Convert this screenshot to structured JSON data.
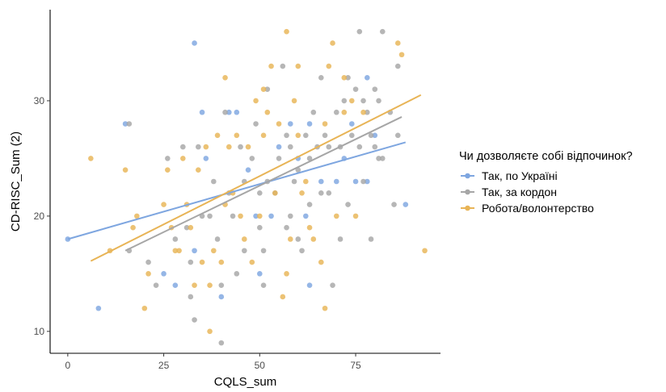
{
  "chart_data": {
    "type": "scatter",
    "xlabel": "CQLS_sum",
    "ylabel": "CD-RISC_Sum (2)",
    "xlim": [
      -4.6,
      97.1
    ],
    "ylim": [
      8.1,
      37.9
    ],
    "x_ticks": [
      0,
      25,
      50,
      75
    ],
    "y_ticks": [
      10,
      20,
      30
    ],
    "x_tick_labels": [
      "0",
      "25",
      "50",
      "75"
    ],
    "y_tick_labels": [
      "10",
      "20",
      "30"
    ],
    "grid": false,
    "legend": {
      "title": "Чи дозволяєте собі відпочинок?",
      "placement": "right"
    },
    "series": [
      {
        "name": "Так, по Україні",
        "color": "#7EA6E0",
        "fit": {
          "x": [
            0,
            88
          ],
          "y": [
            18,
            26.4
          ]
        },
        "points": [
          [
            0,
            18
          ],
          [
            8,
            12
          ],
          [
            15,
            28
          ],
          [
            25,
            15
          ],
          [
            28,
            14
          ],
          [
            33,
            35
          ],
          [
            33,
            17
          ],
          [
            35,
            29
          ],
          [
            36,
            25
          ],
          [
            40,
            13
          ],
          [
            42,
            29
          ],
          [
            44,
            29
          ],
          [
            47,
            24
          ],
          [
            49,
            20
          ],
          [
            50,
            15
          ],
          [
            53,
            20
          ],
          [
            55,
            26
          ],
          [
            58,
            28
          ],
          [
            60,
            25
          ],
          [
            62,
            20
          ],
          [
            63,
            14
          ],
          [
            63,
            28
          ],
          [
            66,
            23
          ],
          [
            70,
            23
          ],
          [
            72,
            25
          ],
          [
            74,
            28
          ],
          [
            75,
            23
          ],
          [
            78,
            32
          ],
          [
            78,
            23
          ],
          [
            80,
            27
          ],
          [
            88,
            21
          ]
        ]
      },
      {
        "name": "Так, за кордон",
        "color": "#A6A6A6",
        "fit": {
          "x": [
            15,
            87
          ],
          "y": [
            17,
            28.6
          ]
        },
        "points": [
          [
            16,
            28
          ],
          [
            16,
            17
          ],
          [
            21,
            16
          ],
          [
            23,
            14
          ],
          [
            26,
            25
          ],
          [
            28,
            18
          ],
          [
            30,
            26
          ],
          [
            31,
            19
          ],
          [
            32,
            13
          ],
          [
            32,
            16
          ],
          [
            33,
            11
          ],
          [
            34,
            26
          ],
          [
            35,
            20
          ],
          [
            37,
            20
          ],
          [
            38,
            23
          ],
          [
            39,
            18
          ],
          [
            40,
            9
          ],
          [
            40,
            14
          ],
          [
            41,
            29
          ],
          [
            42,
            22
          ],
          [
            43,
            20
          ],
          [
            44,
            15
          ],
          [
            45,
            26
          ],
          [
            46,
            17
          ],
          [
            46,
            23
          ],
          [
            48,
            25
          ],
          [
            49,
            28
          ],
          [
            50,
            19
          ],
          [
            50,
            22
          ],
          [
            51,
            17
          ],
          [
            51,
            14
          ],
          [
            52,
            23
          ],
          [
            52,
            31
          ],
          [
            54,
            22
          ],
          [
            55,
            25
          ],
          [
            56,
            33
          ],
          [
            57,
            27
          ],
          [
            57,
            19
          ],
          [
            58,
            20
          ],
          [
            58,
            26
          ],
          [
            59,
            23
          ],
          [
            60,
            18
          ],
          [
            60,
            24
          ],
          [
            61,
            17
          ],
          [
            62,
            27
          ],
          [
            63,
            21
          ],
          [
            63,
            25
          ],
          [
            64,
            29
          ],
          [
            65,
            26
          ],
          [
            66,
            32
          ],
          [
            66,
            22
          ],
          [
            67,
            27
          ],
          [
            68,
            26
          ],
          [
            68,
            22
          ],
          [
            69,
            14
          ],
          [
            70,
            29
          ],
          [
            71,
            26
          ],
          [
            71,
            18
          ],
          [
            72,
            30
          ],
          [
            73,
            32
          ],
          [
            73,
            21
          ],
          [
            74,
            27
          ],
          [
            75,
            31
          ],
          [
            76,
            36
          ],
          [
            76,
            26
          ],
          [
            77,
            23
          ],
          [
            77,
            30
          ],
          [
            78,
            29
          ],
          [
            79,
            27
          ],
          [
            79,
            18
          ],
          [
            80,
            31
          ],
          [
            80,
            26
          ],
          [
            81,
            30
          ],
          [
            81,
            25
          ],
          [
            82,
            36
          ],
          [
            82,
            25
          ],
          [
            84,
            29
          ],
          [
            85,
            21
          ],
          [
            86,
            33
          ],
          [
            86,
            27
          ]
        ]
      },
      {
        "name": "Робота/волонтерство",
        "color": "#E8B456",
        "fit": {
          "x": [
            6,
            92
          ],
          "y": [
            16.1,
            30.5
          ]
        },
        "points": [
          [
            6,
            25
          ],
          [
            11,
            17
          ],
          [
            15,
            24
          ],
          [
            17,
            19
          ],
          [
            18,
            20
          ],
          [
            20,
            12
          ],
          [
            21,
            15
          ],
          [
            25,
            21
          ],
          [
            26,
            24
          ],
          [
            27,
            19
          ],
          [
            28,
            17
          ],
          [
            29,
            17
          ],
          [
            30,
            25
          ],
          [
            31,
            21
          ],
          [
            32,
            19
          ],
          [
            33,
            14
          ],
          [
            34,
            24
          ],
          [
            35,
            16
          ],
          [
            36,
            26
          ],
          [
            37,
            14
          ],
          [
            37,
            10
          ],
          [
            38,
            17
          ],
          [
            39,
            27
          ],
          [
            40,
            16
          ],
          [
            41,
            21
          ],
          [
            41,
            32
          ],
          [
            42,
            26
          ],
          [
            43,
            22
          ],
          [
            44,
            27
          ],
          [
            45,
            20
          ],
          [
            46,
            18
          ],
          [
            47,
            26
          ],
          [
            48,
            16
          ],
          [
            49,
            30
          ],
          [
            50,
            20
          ],
          [
            51,
            27
          ],
          [
            51,
            31
          ],
          [
            52,
            29
          ],
          [
            53,
            33
          ],
          [
            54,
            22
          ],
          [
            55,
            28
          ],
          [
            56,
            13
          ],
          [
            57,
            36
          ],
          [
            57,
            15
          ],
          [
            58,
            18
          ],
          [
            59,
            30
          ],
          [
            60,
            33
          ],
          [
            60,
            27
          ],
          [
            61,
            22
          ],
          [
            62,
            23
          ],
          [
            63,
            19
          ],
          [
            64,
            18
          ],
          [
            66,
            16
          ],
          [
            67,
            12
          ],
          [
            67,
            28
          ],
          [
            68,
            33
          ],
          [
            69,
            35
          ],
          [
            70,
            20
          ],
          [
            72,
            29
          ],
          [
            72,
            32
          ],
          [
            74,
            30
          ],
          [
            75,
            20
          ],
          [
            77,
            29
          ],
          [
            86,
            35
          ],
          [
            87,
            34
          ],
          [
            93,
            17
          ]
        ]
      }
    ]
  }
}
